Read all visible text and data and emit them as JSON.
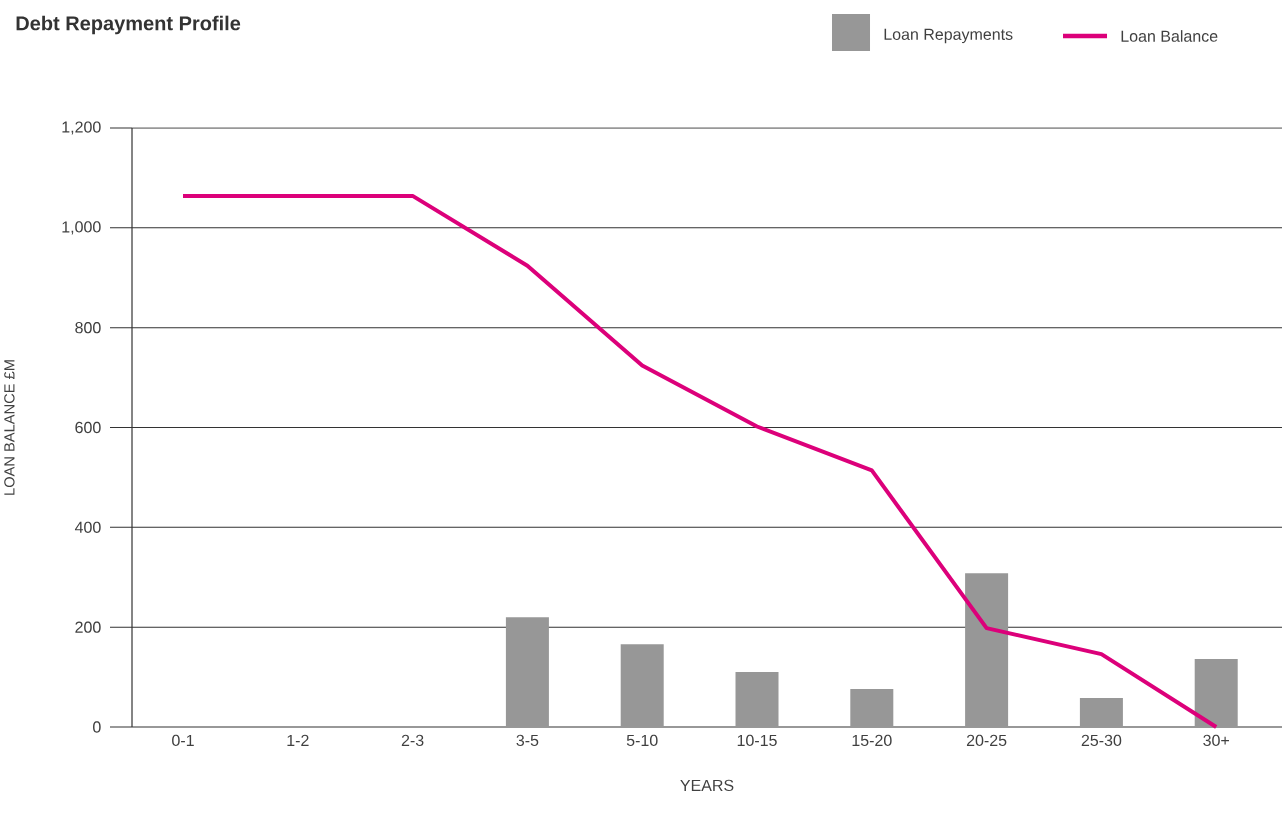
{
  "chart_data": {
    "type": "bar",
    "title": "Debt Repayment Profile",
    "xlabel": "YEARS",
    "ylabel": "LOAN BALANCE £M",
    "categories": [
      "0-1",
      "1-2",
      "2-3",
      "3-5",
      "5-10",
      "10-15",
      "15-20",
      "20-25",
      "25-30",
      "30+"
    ],
    "series": [
      {
        "name": "Loan Repayments",
        "color": "#979797",
        "values": [
          null,
          null,
          null,
          220,
          166,
          110,
          76,
          308,
          58,
          136
        ]
      },
      {
        "name": "Loan Balance",
        "type": "line",
        "color": "#dc007a",
        "values": [
          1064,
          1064,
          1064,
          924,
          724,
          602,
          514,
          198,
          146,
          0
        ]
      }
    ],
    "ylim": [
      0,
      1200
    ],
    "yticks": [
      0,
      200,
      400,
      600,
      800,
      {
        "value": 1000,
        "label": "1,000"
      },
      {
        "value": 1200,
        "label": "1,200"
      }
    ],
    "grid": "y",
    "legend": "top right",
    "marker": "none",
    "line_style": "solid"
  }
}
